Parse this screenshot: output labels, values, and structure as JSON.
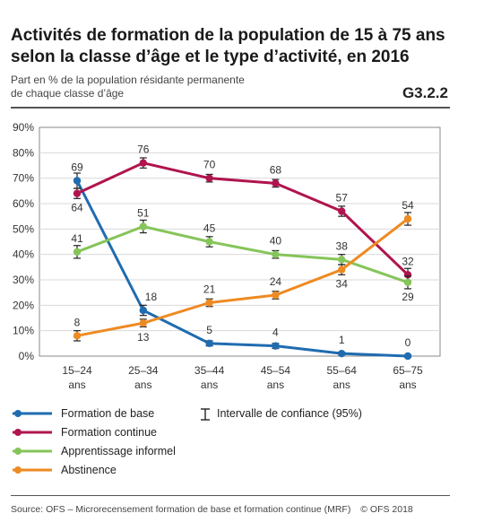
{
  "header": {
    "title_line1": "Activités de formation de la population de 15 à 75 ans",
    "title_line2": "selon la classe d’âge et le type d’activité, en 2016",
    "subtitle_line1": "Part en % de la population résidante permanente",
    "subtitle_line2": "de chaque classe d’âge",
    "code": "G3.2.2"
  },
  "chart_data": {
    "type": "line",
    "categories": [
      [
        "15–24",
        "ans"
      ],
      [
        "25–34",
        "ans"
      ],
      [
        "35–44",
        "ans"
      ],
      [
        "45–54",
        "ans"
      ],
      [
        "55–64",
        "ans"
      ],
      [
        "65–75",
        "ans"
      ]
    ],
    "ylim": [
      0,
      90
    ],
    "yticks": [
      "0%",
      "10%",
      "20%",
      "30%",
      "40%",
      "50%",
      "60%",
      "70%",
      "80%",
      "90%"
    ],
    "grid": true,
    "series": [
      {
        "name": "Formation de base",
        "color": "#1f6cb0",
        "values": [
          69,
          18,
          5,
          4,
          1,
          0
        ],
        "ci": [
          3,
          2,
          1,
          1,
          0.5,
          0.5
        ],
        "label_pos": [
          "above",
          "right",
          "above",
          "above",
          "above",
          "above"
        ]
      },
      {
        "name": "Formation continue",
        "color": "#b0144e",
        "values": [
          64,
          76,
          70,
          68,
          57,
          32
        ],
        "ci": [
          2,
          2,
          1.5,
          1.5,
          2,
          2.5
        ],
        "label_pos": [
          "below",
          "above",
          "above",
          "above",
          "above",
          "above"
        ]
      },
      {
        "name": "Apprentissage informel",
        "color": "#86c55a",
        "values": [
          41,
          51,
          45,
          40,
          38,
          29
        ],
        "ci": [
          2.5,
          2.5,
          2,
          1.5,
          2,
          2.5
        ],
        "label_pos": [
          "above",
          "above",
          "above",
          "above",
          "above",
          "below"
        ]
      },
      {
        "name": "Abstinence",
        "color": "#ee8a22",
        "values": [
          8,
          13,
          21,
          24,
          34,
          54
        ],
        "ci": [
          2,
          1.5,
          1.5,
          1.5,
          2,
          2.5
        ],
        "label_pos": [
          "above",
          "below",
          "above",
          "above",
          "below",
          "above"
        ]
      }
    ],
    "ci_legend": "Intervalle de confiance (95%)"
  },
  "footer": {
    "source": "Source: OFS – Microrecensement formation de base et formation continue (MRF)",
    "copyright": "© OFS 2018"
  }
}
